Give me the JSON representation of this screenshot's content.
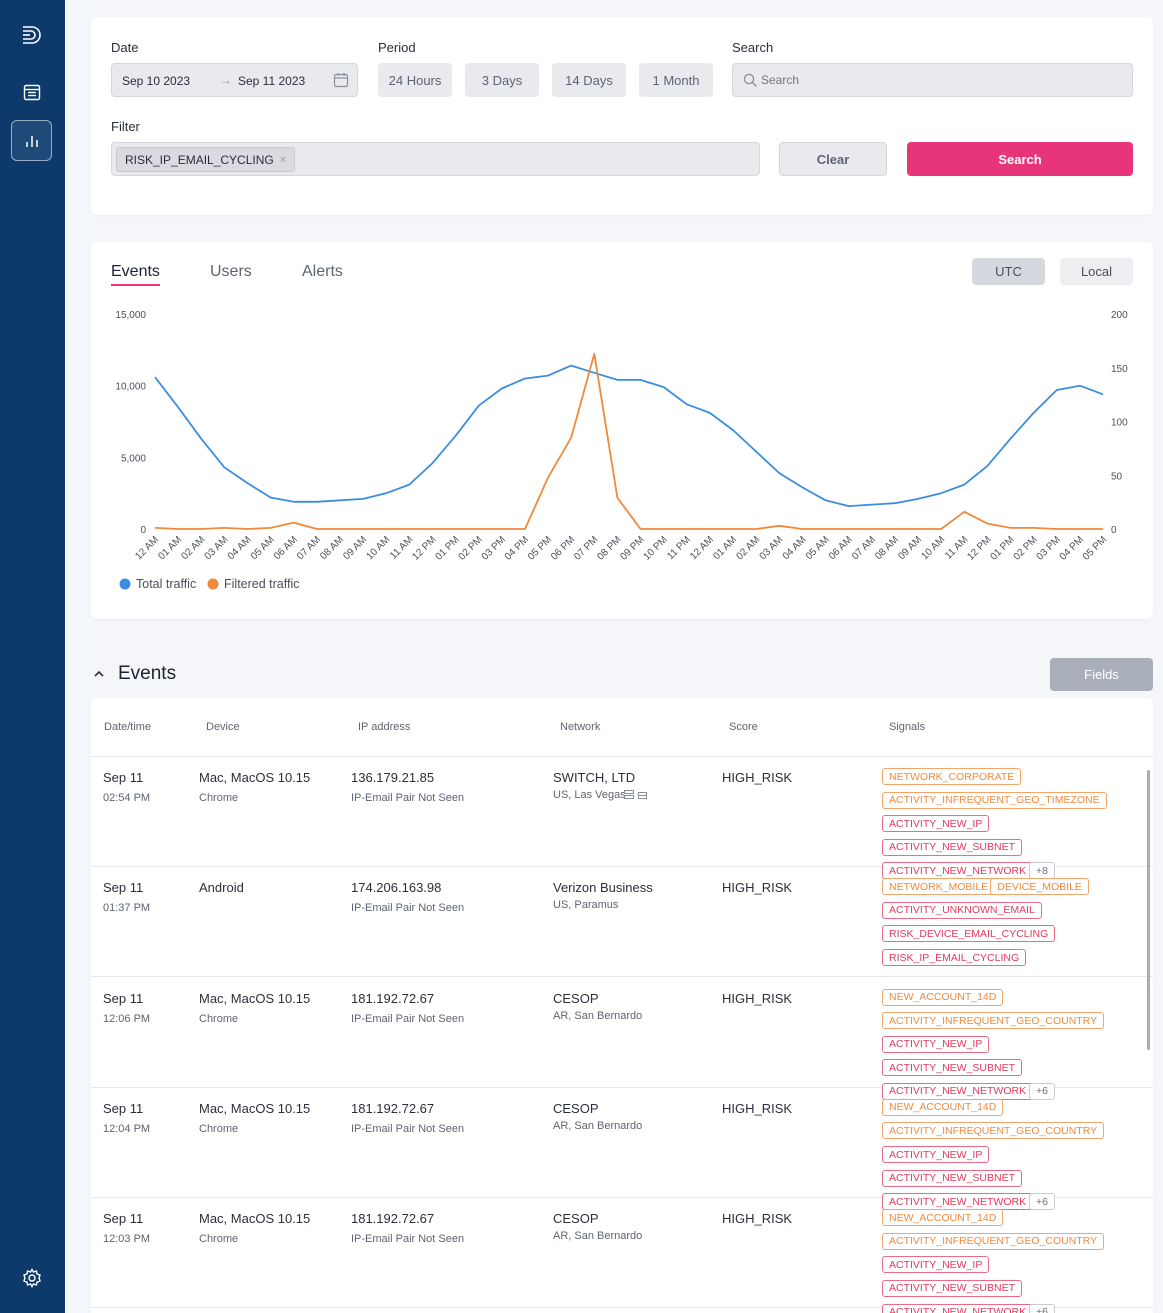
{
  "filters": {
    "date_label": "Date",
    "date_from": "Sep 10 2023",
    "date_arrow": "→",
    "date_to": "Sep 11 2023",
    "period_label": "Period",
    "periods": [
      "24 Hours",
      "3 Days",
      "14 Days",
      "1 Month"
    ],
    "search_label": "Search",
    "search_placeholder": "Search",
    "filter_label": "Filter",
    "filter_chip": "RISK_IP_EMAIL_CYCLING",
    "filter_chip_remove": "×",
    "clear_button": "Clear",
    "search_button": "Search"
  },
  "chart_panel": {
    "tabs": [
      "Events",
      "Users",
      "Alerts"
    ],
    "active_tab": "Events",
    "tz_utc": "UTC",
    "tz_local": "Local"
  },
  "chart_data": {
    "type": "line",
    "x": [
      "12 AM",
      "01 AM",
      "02 AM",
      "03 AM",
      "04 AM",
      "05 AM",
      "06 AM",
      "07 AM",
      "08 AM",
      "09 AM",
      "10 AM",
      "11 AM",
      "12 PM",
      "01 PM",
      "02 PM",
      "03 PM",
      "04 PM",
      "05 PM",
      "06 PM",
      "07 PM",
      "08 PM",
      "09 PM",
      "10 PM",
      "11 PM",
      "12 AM",
      "01 AM",
      "02 AM",
      "03 AM",
      "04 AM",
      "05 AM",
      "06 AM",
      "07 AM",
      "08 AM",
      "09 AM",
      "10 AM",
      "11 AM",
      "12 PM",
      "01 PM",
      "02 PM",
      "03 PM",
      "04 PM",
      "05 PM"
    ],
    "y_left_ticks": [
      "0",
      "5,000",
      "10,000",
      "15,000"
    ],
    "y_right_ticks": [
      "0",
      "50",
      "100",
      "150",
      "200"
    ],
    "ylim_left": [
      0,
      15000
    ],
    "ylim_right": [
      0,
      200
    ],
    "series": [
      {
        "name": "Total traffic",
        "axis": "left",
        "color": "#3a8de0",
        "values": [
          10600,
          8500,
          6300,
          4300,
          3200,
          2200,
          1900,
          1900,
          2000,
          2100,
          2500,
          3100,
          4600,
          6500,
          8600,
          9800,
          10500,
          10700,
          11400,
          10900,
          10400,
          10400,
          9900,
          8700,
          8100,
          6900,
          5400,
          3900,
          2900,
          2000,
          1600,
          1700,
          1800,
          2100,
          2500,
          3100,
          4400,
          6300,
          8100,
          9700,
          10000,
          9400
        ]
      },
      {
        "name": "Filtered traffic",
        "axis": "right",
        "color": "#f0893a",
        "values": [
          1,
          0,
          0,
          1,
          0,
          1,
          6,
          0,
          0,
          0,
          0,
          0,
          0,
          0,
          0,
          0,
          0,
          48,
          85,
          163,
          29,
          0,
          0,
          0,
          0,
          0,
          0,
          3,
          0,
          0,
          0,
          0,
          0,
          0,
          0,
          16,
          5,
          1,
          1,
          0,
          0,
          0
        ]
      }
    ],
    "legend_position": "bottom-left"
  },
  "events": {
    "title": "Events",
    "collapse_icon": "chevron-up-icon",
    "fields_button": "Fields",
    "headers": [
      "Date/time",
      "Device",
      "IP address",
      "Network",
      "Score",
      "Signals"
    ],
    "rows": [
      {
        "date": "Sep 11",
        "time": "02:54 PM",
        "device": "Mac, MacOS 10.15",
        "browser": "Chrome",
        "ip": "136.179.21.85",
        "ip_note": "IP-Email Pair Not Seen",
        "network": "SWITCH, LTD",
        "location": "US, Las Vegas",
        "score": "HIGH_RISK",
        "signals": [
          [
            "NETWORK_CORPORATE",
            "o"
          ],
          [
            "ACTIVITY_INFREQUENT_GEO_TIMEZONE",
            "o"
          ],
          [
            "ACTIVITY_NEW_IP",
            "r"
          ],
          [
            "ACTIVITY_NEW_SUBNET",
            "r"
          ],
          [
            "ACTIVITY_NEW_NETWORK",
            "r"
          ],
          [
            "+8",
            "g"
          ]
        ]
      },
      {
        "date": "Sep 11",
        "time": "01:37 PM",
        "device": "Android",
        "browser": "",
        "ip": "174.206.163.98",
        "ip_note": "IP-Email Pair Not Seen",
        "network": "Verizon Business",
        "location": "US, Paramus",
        "score": "HIGH_RISK",
        "signals": [
          [
            "NETWORK_MOBILE",
            "o"
          ],
          [
            "DEVICE_MOBILE",
            "o"
          ],
          [
            "ACTIVITY_UNKNOWN_EMAIL",
            "r"
          ],
          [
            "RISK_DEVICE_EMAIL_CYCLING",
            "r"
          ],
          [
            "RISK_IP_EMAIL_CYCLING",
            "r"
          ]
        ]
      },
      {
        "date": "Sep 11",
        "time": "12:06 PM",
        "device": "Mac, MacOS 10.15",
        "browser": "Chrome",
        "ip": "181.192.72.67",
        "ip_note": "IP-Email Pair Not Seen",
        "network": "CESOP",
        "location": "AR, San Bernardo",
        "score": "HIGH_RISK",
        "signals": [
          [
            "NEW_ACCOUNT_14D",
            "o"
          ],
          [
            "ACTIVITY_INFREQUENT_GEO_COUNTRY",
            "o"
          ],
          [
            "ACTIVITY_NEW_IP",
            "r"
          ],
          [
            "ACTIVITY_NEW_SUBNET",
            "r"
          ],
          [
            "ACTIVITY_NEW_NETWORK",
            "r"
          ],
          [
            "+6",
            "g"
          ]
        ]
      },
      {
        "date": "Sep 11",
        "time": "12:04 PM",
        "device": "Mac, MacOS 10.15",
        "browser": "Chrome",
        "ip": "181.192.72.67",
        "ip_note": "IP-Email Pair Not Seen",
        "network": "CESOP",
        "location": "AR, San Bernardo",
        "score": "HIGH_RISK",
        "signals": [
          [
            "NEW_ACCOUNT_14D",
            "o"
          ],
          [
            "ACTIVITY_INFREQUENT_GEO_COUNTRY",
            "o"
          ],
          [
            "ACTIVITY_NEW_IP",
            "r"
          ],
          [
            "ACTIVITY_NEW_SUBNET",
            "r"
          ],
          [
            "ACTIVITY_NEW_NETWORK",
            "r"
          ],
          [
            "+6",
            "g"
          ]
        ]
      },
      {
        "date": "Sep 11",
        "time": "12:03 PM",
        "device": "Mac, MacOS 10.15",
        "browser": "Chrome",
        "ip": "181.192.72.67",
        "ip_note": "IP-Email Pair Not Seen",
        "network": "CESOP",
        "location": "AR, San Bernardo",
        "score": "HIGH_RISK",
        "signals": [
          [
            "NEW_ACCOUNT_14D",
            "o"
          ],
          [
            "ACTIVITY_INFREQUENT_GEO_COUNTRY",
            "o"
          ],
          [
            "ACTIVITY_NEW_IP",
            "r"
          ],
          [
            "ACTIVITY_NEW_SUBNET",
            "r"
          ],
          [
            "ACTIVITY_NEW_NETWORK",
            "r"
          ],
          [
            "+6",
            "g"
          ]
        ]
      }
    ]
  },
  "colors": {
    "accent": "#e8357a",
    "sidebar": "#0d3a6b",
    "total_traffic": "#3a8de0",
    "filtered_traffic": "#f0893a"
  }
}
